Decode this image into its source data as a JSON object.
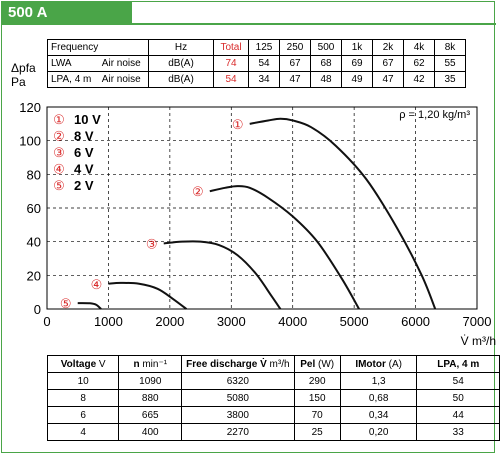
{
  "header": {
    "title": "500 A"
  },
  "noise_table": {
    "headers": [
      "Frequency",
      "Hz",
      "Total",
      "125",
      "250",
      "500",
      "1k",
      "2k",
      "4k",
      "8k"
    ],
    "side_label_top": "Δpfa",
    "side_label_bottom": "Pa",
    "rows": [
      {
        "label": "LWA",
        "desc": "Air noise",
        "unit": "dB(A)",
        "total": "74",
        "values": [
          "54",
          "67",
          "68",
          "69",
          "67",
          "62",
          "55"
        ]
      },
      {
        "label": "LPA, 4 m",
        "desc": "Air noise",
        "unit": "dB(A)",
        "total": "54",
        "values": [
          "34",
          "47",
          "48",
          "49",
          "47",
          "42",
          "35"
        ]
      }
    ]
  },
  "chart_data": {
    "type": "line",
    "xlabel": "V̇ m³/h",
    "ylabel": "Δpfa Pa",
    "xlim": [
      0,
      7000
    ],
    "ylim": [
      0,
      120
    ],
    "xticks": [
      "0",
      "1000",
      "2000",
      "3000",
      "4000",
      "5000",
      "6000",
      "7000"
    ],
    "yticks": [
      "0",
      "20",
      "40",
      "60",
      "80",
      "100",
      "120"
    ],
    "grid": "dashed",
    "annotation": "ρ = 1,20 kg/m³",
    "legend": [
      {
        "marker": "①",
        "label": "10 V"
      },
      {
        "marker": "②",
        "label": "8 V"
      },
      {
        "marker": "③",
        "label": "6 V"
      },
      {
        "marker": "④",
        "label": "4 V"
      },
      {
        "marker": "⑤",
        "label": "2 V"
      }
    ],
    "series": [
      {
        "marker": "①",
        "x": [
          3300,
          3600,
          3800,
          4000,
          4300,
          4700,
          5200,
          5700,
          6100,
          6320
        ],
        "y": [
          110,
          112,
          113,
          112,
          108,
          97,
          77,
          48,
          20,
          0
        ]
      },
      {
        "marker": "②",
        "x": [
          2650,
          2900,
          3100,
          3300,
          3600,
          4000,
          4400,
          4800,
          5080
        ],
        "y": [
          70,
          72,
          73,
          72,
          66,
          55,
          40,
          18,
          0
        ]
      },
      {
        "marker": "③",
        "x": [
          1900,
          2200,
          2500,
          2800,
          3100,
          3400,
          3650,
          3800
        ],
        "y": [
          39,
          40,
          40,
          38,
          32,
          21,
          8,
          0
        ]
      },
      {
        "marker": "④",
        "x": [
          1000,
          1200,
          1500,
          1800,
          2050,
          2270
        ],
        "y": [
          15,
          15.5,
          15,
          12,
          6,
          0
        ]
      },
      {
        "marker": "⑤",
        "x": [
          500,
          700,
          800,
          880
        ],
        "y": [
          3.5,
          3.4,
          2.5,
          0
        ]
      }
    ]
  },
  "performance_table": {
    "headers": [
      {
        "label": "Voltage",
        "unit": "V"
      },
      {
        "label": "n",
        "unit": "min⁻¹"
      },
      {
        "label": "Free discharge V̇",
        "unit": "m³/h"
      },
      {
        "label": "Pel",
        "unit": "(W)"
      },
      {
        "label": "IMotor",
        "unit": "(A)"
      },
      {
        "label": "LPA, 4 m",
        "unit": ""
      }
    ],
    "rows": [
      [
        "10",
        "1090",
        "6320",
        "290",
        "1,3",
        "54"
      ],
      [
        "8",
        "880",
        "5080",
        "150",
        "0,68",
        "50"
      ],
      [
        "6",
        "665",
        "3800",
        "70",
        "0,34",
        "44"
      ],
      [
        "4",
        "400",
        "2270",
        "25",
        "0,20",
        "33"
      ]
    ]
  },
  "colors": {
    "accent": "#4aa548",
    "highlight": "#d92b2b",
    "curve": "#111111"
  }
}
